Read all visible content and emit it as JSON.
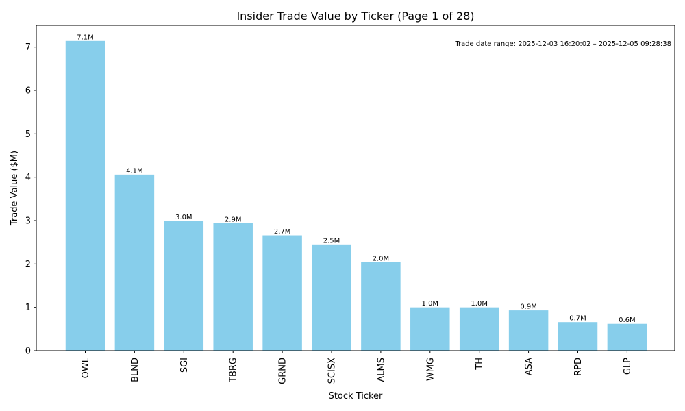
{
  "chart_data": {
    "type": "bar",
    "title": "Insider Trade Value by Ticker (Page 1 of 28)",
    "xlabel": "Stock Ticker",
    "ylabel": "Trade Value ($M)",
    "ylim": [
      0,
      7.5
    ],
    "yticks": [
      0,
      1,
      2,
      3,
      4,
      5,
      6,
      7
    ],
    "categories": [
      "OWL",
      "BLND",
      "SGI",
      "TBRG",
      "GRND",
      "SCISX",
      "ALMS",
      "WMG",
      "TH",
      "ASA",
      "RPD",
      "GLP"
    ],
    "values": [
      7.14,
      4.06,
      2.99,
      2.94,
      2.66,
      2.45,
      2.04,
      1.0,
      1.0,
      0.93,
      0.66,
      0.62
    ],
    "data_labels": [
      "7.1M",
      "4.1M",
      "3.0M",
      "2.9M",
      "2.7M",
      "2.5M",
      "2.0M",
      "1.0M",
      "1.0M",
      "0.9M",
      "0.7M",
      "0.6M"
    ],
    "bar_color": "#87CEEB",
    "grid": false,
    "annotation": "Trade date range: 2025-12-03 16:20:02 – 2025-12-05 09:28:38"
  }
}
